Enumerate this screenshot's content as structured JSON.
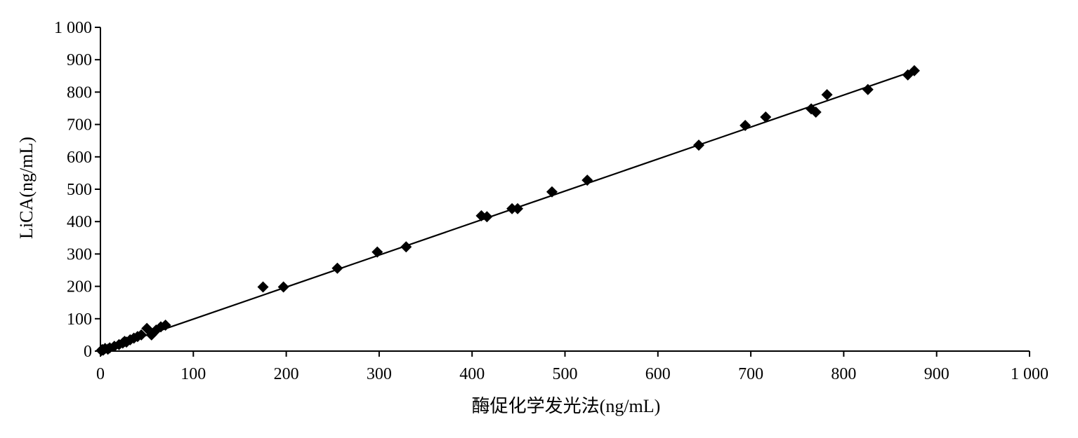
{
  "chart_data": {
    "type": "scatter",
    "xlabel": "酶促化学发光法(ng/mL)",
    "ylabel": "LiCA(ng/mL)",
    "xlim": [
      0,
      1000
    ],
    "ylim": [
      0,
      1000
    ],
    "x_ticks": [
      0,
      100,
      200,
      300,
      400,
      500,
      600,
      700,
      800,
      900,
      1000
    ],
    "y_ticks": [
      0,
      100,
      200,
      300,
      400,
      500,
      600,
      700,
      800,
      900,
      1000
    ],
    "x_tick_labels": [
      "0",
      "100",
      "200",
      "300",
      "400",
      "500",
      "600",
      "700",
      "800",
      "900",
      "1 000"
    ],
    "y_tick_labels": [
      "0",
      "100",
      "200",
      "300",
      "400",
      "500",
      "600",
      "700",
      "800",
      "900",
      "1 000"
    ],
    "grid": false,
    "legend": "none",
    "marker": "diamond",
    "color": "#000000",
    "trendline": {
      "x": [
        0,
        878
      ],
      "y": [
        0,
        868
      ]
    },
    "points": {
      "x": [
        1,
        2,
        3,
        5,
        8,
        10,
        15,
        20,
        24,
        26,
        28,
        32,
        36,
        40,
        44,
        50,
        55,
        60,
        65,
        70,
        175,
        197,
        255,
        298,
        329,
        410,
        416,
        443,
        449,
        486,
        524,
        644,
        694,
        716,
        765,
        770,
        782,
        826,
        869,
        876
      ],
      "y": [
        2,
        5,
        3,
        8,
        6,
        10,
        15,
        20,
        25,
        30,
        28,
        35,
        40,
        45,
        50,
        70,
        50,
        65,
        75,
        80,
        198,
        198,
        256,
        306,
        322,
        418,
        415,
        440,
        440,
        492,
        528,
        636,
        697,
        723,
        748,
        738,
        792,
        808,
        853,
        866
      ]
    }
  }
}
